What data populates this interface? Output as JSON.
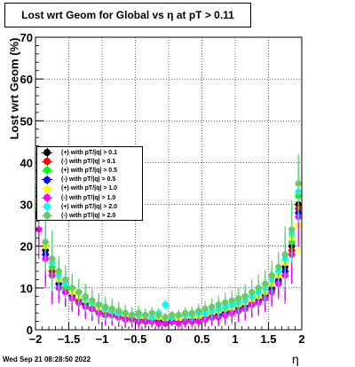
{
  "title": "Lost wrt Geom for Global vs   η at pT > 0.11",
  "datestamp": "Wed Sep 21 08:28:50 2022",
  "colors": {
    "series": [
      "#000000",
      "#ff0000",
      "#00ff00",
      "#0000ff",
      "#ffff00",
      "#ff00ff",
      "#00ffff",
      "#66cc66"
    ]
  },
  "chart_data": {
    "type": "scatter",
    "title": "Lost wrt Geom for Global vs   η at pT > 0.11",
    "xlabel": "η",
    "ylabel": "Lost wrt Geom (%)",
    "xlim": [
      -2,
      2
    ],
    "ylim": [
      0,
      70
    ],
    "x_ticks": [
      -2,
      -1.5,
      -1,
      -0.5,
      0,
      0.5,
      1,
      1.5,
      2
    ],
    "x_tick_labels": [
      "−2",
      "−1.5",
      "−1",
      "−0.5",
      "0",
      "0.5",
      "1",
      "1.5",
      "2"
    ],
    "y_ticks": [
      0,
      10,
      20,
      30,
      40,
      50,
      60,
      70
    ],
    "y_tick_labels": [
      "0",
      "10",
      "20",
      "30",
      "40",
      "50",
      "60",
      "70"
    ],
    "grid": true,
    "legend_position": "left-middle",
    "x": [
      -1.95,
      -1.85,
      -1.75,
      -1.65,
      -1.55,
      -1.45,
      -1.35,
      -1.25,
      -1.15,
      -1.05,
      -0.95,
      -0.85,
      -0.75,
      -0.65,
      -0.55,
      -0.45,
      -0.35,
      -0.25,
      -0.15,
      -0.05,
      0.05,
      0.15,
      0.25,
      0.35,
      0.45,
      0.55,
      0.65,
      0.75,
      0.85,
      0.95,
      1.05,
      1.15,
      1.25,
      1.35,
      1.45,
      1.55,
      1.65,
      1.75,
      1.85,
      1.95
    ],
    "series": [
      {
        "name": "(+) with pT/|q| > 0.1",
        "values": [
          28,
          19,
          14,
          12,
          10,
          8,
          7,
          6,
          5,
          4.5,
          4,
          3.5,
          3,
          3,
          2.5,
          2.5,
          2,
          2.5,
          2,
          2,
          2,
          2,
          2,
          2.5,
          2.5,
          3,
          3,
          3.5,
          4,
          4.5,
          5,
          5.5,
          6,
          7,
          8,
          10,
          12,
          15,
          20,
          30
        ]
      },
      {
        "name": "(-) with pT/|q| > 0.1",
        "values": [
          27,
          18,
          14,
          11,
          9,
          8,
          7,
          6,
          5,
          4.5,
          4,
          3.5,
          3,
          3,
          2.5,
          2.5,
          2.5,
          2,
          2,
          2,
          2.5,
          2,
          2.5,
          2.5,
          2.5,
          3,
          3.5,
          3.5,
          4,
          4.5,
          5,
          5.5,
          6.5,
          7,
          8.5,
          10,
          12,
          14,
          19,
          29
        ]
      },
      {
        "name": "(+) with pT/|q| > 0.5",
        "values": [
          29,
          20,
          15,
          12,
          10,
          9,
          8,
          6.5,
          5.5,
          5,
          4.5,
          4,
          3.5,
          3,
          3,
          3,
          2.5,
          2.5,
          2.5,
          2.5,
          2.5,
          2.5,
          3,
          3,
          3,
          3.5,
          3.5,
          4,
          4.5,
          5,
          5.5,
          6,
          7,
          7.5,
          9,
          11,
          13,
          16,
          21,
          32
        ]
      },
      {
        "name": "(-) with pT/|q| > 0.5",
        "values": [
          27,
          18,
          13,
          11,
          9,
          8,
          6.5,
          6,
          5,
          4.5,
          4,
          3.5,
          3,
          2.5,
          2.5,
          2.5,
          2,
          2,
          2,
          2,
          2,
          2,
          2,
          2.5,
          2.5,
          3,
          3,
          3.5,
          4,
          4.5,
          5,
          5.5,
          6,
          7,
          8,
          9.5,
          11.5,
          14,
          18,
          28
        ]
      },
      {
        "name": "(+) with pT/|q| > 1.0",
        "values": [
          30,
          20,
          16,
          12,
          11,
          9,
          8,
          7,
          6,
          5,
          4.5,
          4,
          3.5,
          3.5,
          3,
          3,
          3,
          2.5,
          3,
          2.5,
          3,
          2.5,
          3,
          3,
          3,
          3.5,
          4,
          4.5,
          5,
          5,
          6,
          6.5,
          7,
          8,
          9,
          11,
          13,
          16,
          22,
          25
        ]
      },
      {
        "name": "(-) with pT/|q| > 1.0",
        "values": [
          24,
          17,
          13,
          10,
          9,
          7.5,
          6.5,
          5.5,
          5,
          4,
          3.5,
          3.5,
          3,
          2.5,
          2.5,
          2,
          2,
          2,
          1.5,
          1.5,
          2,
          1.5,
          2,
          2,
          2,
          2.5,
          3,
          3,
          3.5,
          4,
          4.5,
          5,
          6,
          6.5,
          7.5,
          9,
          11,
          13,
          18,
          27
        ]
      },
      {
        "name": "(+) with pT/|q| > 2.0",
        "values": [
          33,
          21,
          16,
          13,
          11,
          10,
          9,
          7.5,
          6.5,
          6,
          5,
          4.5,
          4,
          4,
          3.5,
          3.5,
          3.5,
          3,
          4,
          6,
          3,
          3.5,
          3.5,
          3.5,
          4,
          4,
          4.5,
          5,
          5.5,
          6,
          6.5,
          7,
          8,
          9,
          10,
          12,
          14,
          17,
          23,
          33
        ]
      },
      {
        "name": "(-) with pT/|q| > 2.0",
        "values": [
          32,
          21,
          17,
          14,
          12,
          10,
          9,
          8,
          7,
          6,
          5.5,
          5,
          4.5,
          4,
          3.5,
          4,
          3.5,
          4,
          3.5,
          3,
          3.5,
          3.5,
          4,
          4,
          4.5,
          5,
          5.5,
          6,
          6.5,
          7,
          7.5,
          8,
          9,
          10,
          11,
          13,
          15,
          18,
          24,
          35
        ]
      }
    ]
  }
}
